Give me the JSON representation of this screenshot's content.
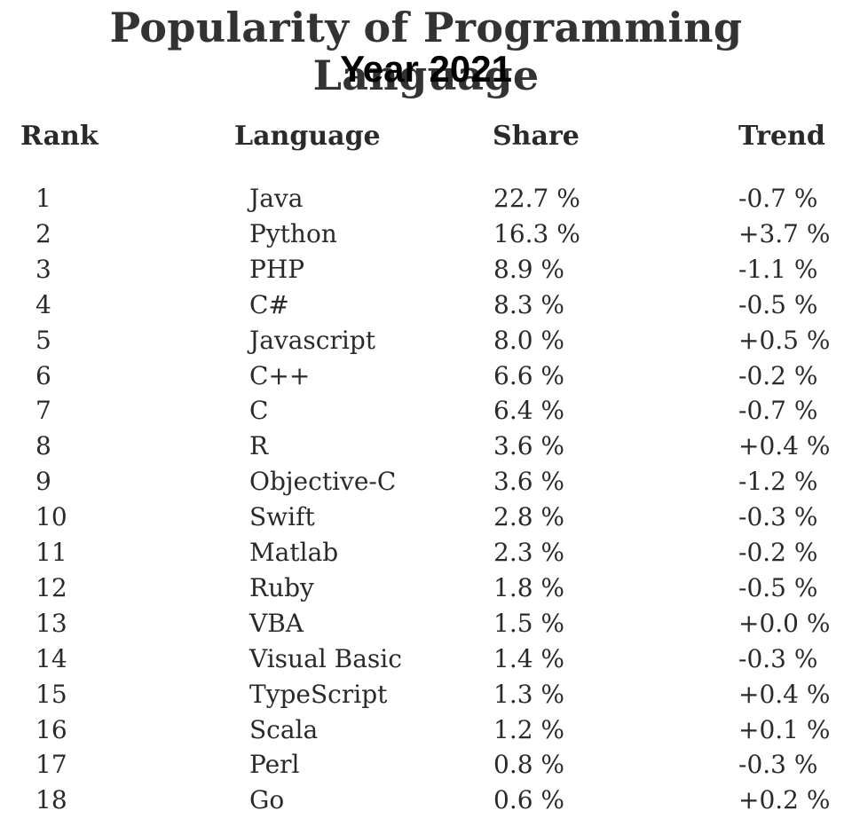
{
  "title": "Popularity of Programming Language",
  "subtitle": "Year 2021",
  "headers": {
    "rank": "Rank",
    "language": "Language",
    "share": "Share",
    "trend": "Trend"
  },
  "chart_data": {
    "type": "table",
    "title": "Popularity of Programming Language",
    "subtitle": "Year 2021",
    "columns": [
      "Rank",
      "Language",
      "Share",
      "Trend"
    ],
    "rows": [
      [
        "1",
        "Java",
        "22.7 %",
        "-0.7 %"
      ],
      [
        "2",
        "Python",
        "16.3 %",
        "+3.7 %"
      ],
      [
        "3",
        "PHP",
        "8.9 %",
        "-1.1 %"
      ],
      [
        "4",
        "C#",
        "8.3 %",
        "-0.5 %"
      ],
      [
        "5",
        "Javascript",
        "8.0 %",
        "+0.5 %"
      ],
      [
        "6",
        "C++",
        "6.6 %",
        "-0.2 %"
      ],
      [
        "7",
        "C",
        "6.4 %",
        "-0.7 %"
      ],
      [
        "8",
        "R",
        "3.6 %",
        "+0.4 %"
      ],
      [
        "9",
        "Objective-C",
        "3.6 %",
        "-1.2 %"
      ],
      [
        "10",
        "Swift",
        "2.8 %",
        "-0.3 %"
      ],
      [
        "11",
        "Matlab",
        "2.3 %",
        "-0.2 %"
      ],
      [
        "12",
        "Ruby",
        "1.8 %",
        "-0.5 %"
      ],
      [
        "13",
        "VBA",
        "1.5 %",
        "+0.0 %"
      ],
      [
        "14",
        "Visual Basic",
        "1.4 %",
        "-0.3 %"
      ],
      [
        "15",
        "TypeScript",
        "1.3 %",
        "+0.4 %"
      ],
      [
        "16",
        "Scala",
        "1.2 %",
        "+0.1 %"
      ],
      [
        "17",
        "Perl",
        "0.8 %",
        "-0.3 %"
      ],
      [
        "18",
        "Go",
        "0.6 %",
        "+0.2 %"
      ]
    ]
  }
}
